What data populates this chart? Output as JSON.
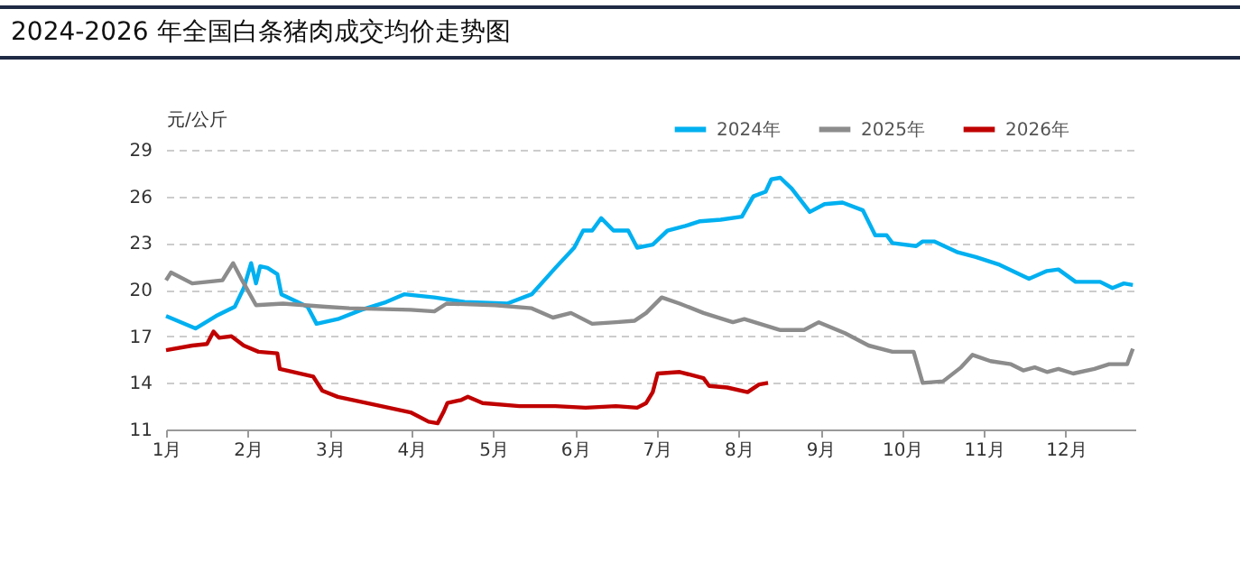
{
  "chart_data": {
    "type": "line",
    "title": "2024-2026 年全国白条猪肉成交均价走势图",
    "ylabel": "元/公斤",
    "xlim": [
      1,
      12.85
    ],
    "xticks": [
      {
        "value": 1,
        "label": "1月"
      },
      {
        "value": 2,
        "label": "2月"
      },
      {
        "value": 3,
        "label": "3月"
      },
      {
        "value": 4,
        "label": "4月"
      },
      {
        "value": 5,
        "label": "5月"
      },
      {
        "value": 6,
        "label": "6月"
      },
      {
        "value": 7,
        "label": "7月"
      },
      {
        "value": 8,
        "label": "8月"
      },
      {
        "value": 9,
        "label": "9月"
      },
      {
        "value": 10,
        "label": "10月"
      },
      {
        "value": 11,
        "label": "11月"
      },
      {
        "value": 12,
        "label": "12月"
      }
    ],
    "ylim": [
      11,
      29
    ],
    "yticks": [
      11,
      14,
      17,
      20,
      23,
      26,
      29
    ],
    "grid": "y",
    "legend": "top right",
    "series": [
      {
        "name": "2024年",
        "color": "#00b0f0",
        "x": [
          1.0,
          1.36,
          1.61,
          1.84,
          1.95,
          2.04,
          2.1,
          2.15,
          2.24,
          2.36,
          2.41,
          2.73,
          2.84,
          3.1,
          3.39,
          3.69,
          3.91,
          4.28,
          4.65,
          5.17,
          5.47,
          5.76,
          5.99,
          6.1,
          6.21,
          6.32,
          6.47,
          6.65,
          6.76,
          6.95,
          7.13,
          7.35,
          7.53,
          7.78,
          8.04,
          8.18,
          8.33,
          8.4,
          8.51,
          8.65,
          8.87,
          9.05,
          9.27,
          9.52,
          9.67,
          9.81,
          9.88,
          10.17,
          10.25,
          10.39,
          10.68,
          10.9,
          11.19,
          11.55,
          11.77,
          11.91,
          12.12,
          12.42,
          12.57,
          12.71,
          12.82
        ],
        "values": [
          18.3,
          17.5,
          18.3,
          18.9,
          20.1,
          21.7,
          20.4,
          21.5,
          21.4,
          21.0,
          19.7,
          18.9,
          17.8,
          18.1,
          18.7,
          19.2,
          19.7,
          19.5,
          19.2,
          19.1,
          19.7,
          21.4,
          22.7,
          23.8,
          23.8,
          24.6,
          23.8,
          23.8,
          22.7,
          22.9,
          23.8,
          24.1,
          24.4,
          24.5,
          24.7,
          26.0,
          26.3,
          27.1,
          27.2,
          26.5,
          25.0,
          25.5,
          25.6,
          25.1,
          23.5,
          23.5,
          23.0,
          22.8,
          23.1,
          23.1,
          22.4,
          22.1,
          21.6,
          20.7,
          21.2,
          21.3,
          20.5,
          20.5,
          20.1,
          20.4,
          20.3
        ]
      },
      {
        "name": "2025年",
        "color": "#8c8c8c",
        "x": [
          1.0,
          1.06,
          1.32,
          1.69,
          1.82,
          1.93,
          2.1,
          2.43,
          2.95,
          3.24,
          3.99,
          4.28,
          4.43,
          5.02,
          5.47,
          5.73,
          5.95,
          6.21,
          6.5,
          6.73,
          6.87,
          7.06,
          7.28,
          7.57,
          7.93,
          8.07,
          8.51,
          8.8,
          8.98,
          9.3,
          9.59,
          9.88,
          10.14,
          10.25,
          10.5,
          10.72,
          10.86,
          11.08,
          11.33,
          11.48,
          11.62,
          11.77,
          11.91,
          12.09,
          12.35,
          12.53,
          12.75,
          12.82
        ],
        "values": [
          20.6,
          21.1,
          20.4,
          20.6,
          21.7,
          20.6,
          19.0,
          19.1,
          18.9,
          18.8,
          18.7,
          18.6,
          19.1,
          19.0,
          18.8,
          18.2,
          18.5,
          17.8,
          17.9,
          18.0,
          18.5,
          19.5,
          19.1,
          18.5,
          17.9,
          18.1,
          17.4,
          17.4,
          17.9,
          17.2,
          16.4,
          16.0,
          16.0,
          14.0,
          14.1,
          15.0,
          15.8,
          15.4,
          15.2,
          14.8,
          15.0,
          14.7,
          14.9,
          14.6,
          14.9,
          15.2,
          15.2,
          16.2
        ]
      },
      {
        "name": "2026年",
        "color": "#c00000",
        "x": [
          1.0,
          1.32,
          1.5,
          1.58,
          1.65,
          1.8,
          1.95,
          2.13,
          2.36,
          2.39,
          2.8,
          2.91,
          3.1,
          3.54,
          3.99,
          4.21,
          4.32,
          4.39,
          4.44,
          4.61,
          4.69,
          4.87,
          5.32,
          5.76,
          6.13,
          6.5,
          6.76,
          6.87,
          6.95,
          7.01,
          7.28,
          7.57,
          7.64,
          7.86,
          8.11,
          8.25,
          8.36
        ],
        "values": [
          16.1,
          16.4,
          16.5,
          17.3,
          16.9,
          17.0,
          16.4,
          16.0,
          15.9,
          14.9,
          14.4,
          13.5,
          13.1,
          12.6,
          12.1,
          11.5,
          11.4,
          12.1,
          12.7,
          12.9,
          13.1,
          12.7,
          12.5,
          12.5,
          12.4,
          12.5,
          12.4,
          12.7,
          13.4,
          14.6,
          14.7,
          14.3,
          13.8,
          13.7,
          13.4,
          13.9,
          14.0
        ]
      }
    ]
  }
}
